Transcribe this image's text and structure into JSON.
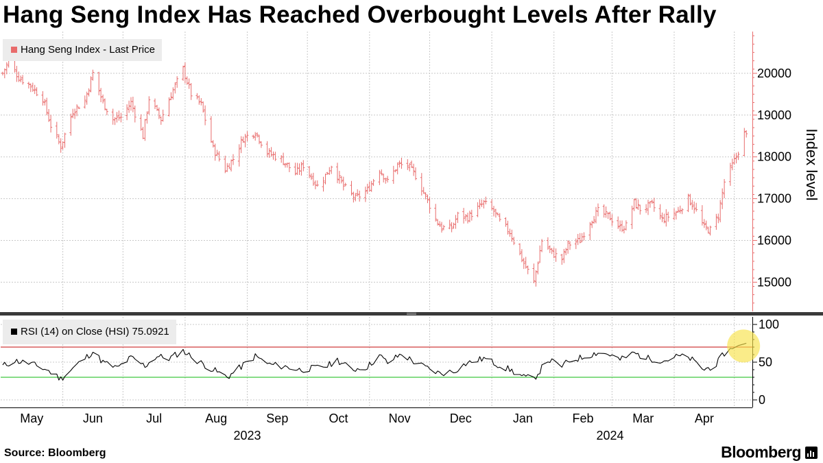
{
  "title": "Hang Seng Index Has Reached Overbought Levels After Rally",
  "source": "Source: Bloomberg",
  "brand": "Bloomberg",
  "colors": {
    "price": "#e86b6b",
    "rsi": "#000000",
    "overbought": "#cf3b3b",
    "oversold": "#3ec63e",
    "highlight": "#f7e24a"
  },
  "chart_data": [
    {
      "type": "ohlc",
      "title": "Hang Seng Index - Last Price",
      "ylabel": "Index level",
      "ylim": [
        14300,
        21000
      ],
      "yticks": [
        15000,
        16000,
        17000,
        18000,
        19000,
        20000
      ],
      "x_labels": [
        "May",
        "Jun",
        "Jul",
        "Aug",
        "Sep",
        "Oct",
        "Nov",
        "Dec",
        "Jan",
        "Feb",
        "Mar",
        "Apr"
      ],
      "year_labels": [
        "2023",
        "2024"
      ],
      "series": [
        {
          "name": "Hang Seng Index - Last Price",
          "anchors": [
            [
              "2023-05-02",
              20000
            ],
            [
              "2023-05-05",
              20300
            ],
            [
              "2023-05-10",
              19900
            ],
            [
              "2023-05-16",
              19700
            ],
            [
              "2023-05-22",
              19400
            ],
            [
              "2023-05-26",
              18750
            ],
            [
              "2023-05-31",
              18250
            ],
            [
              "2023-06-06",
              19100
            ],
            [
              "2023-06-12",
              19350
            ],
            [
              "2023-06-16",
              20000
            ],
            [
              "2023-06-21",
              19300
            ],
            [
              "2023-06-26",
              18900
            ],
            [
              "2023-06-30",
              18950
            ],
            [
              "2023-07-05",
              19300
            ],
            [
              "2023-07-11",
              18500
            ],
            [
              "2023-07-14",
              19400
            ],
            [
              "2023-07-20",
              18900
            ],
            [
              "2023-07-25",
              19500
            ],
            [
              "2023-07-31",
              20100
            ],
            [
              "2023-08-04",
              19500
            ],
            [
              "2023-08-09",
              19250
            ],
            [
              "2023-08-15",
              18200
            ],
            [
              "2023-08-21",
              17700
            ],
            [
              "2023-08-25",
              17950
            ],
            [
              "2023-08-30",
              18450
            ],
            [
              "2023-09-05",
              18600
            ],
            [
              "2023-09-11",
              18100
            ],
            [
              "2023-09-18",
              17950
            ],
            [
              "2023-09-25",
              17600
            ],
            [
              "2023-09-29",
              17800
            ],
            [
              "2023-10-06",
              17300
            ],
            [
              "2023-10-10",
              17550
            ],
            [
              "2023-10-13",
              17800
            ],
            [
              "2023-10-19",
              17300
            ],
            [
              "2023-10-25",
              17000
            ],
            [
              "2023-10-31",
              17200
            ],
            [
              "2023-11-06",
              17700
            ],
            [
              "2023-11-10",
              17400
            ],
            [
              "2023-11-15",
              17800
            ],
            [
              "2023-11-20",
              17800
            ],
            [
              "2023-11-24",
              17550
            ],
            [
              "2023-11-30",
              16950
            ],
            [
              "2023-12-04",
              16500
            ],
            [
              "2023-12-07",
              16300
            ],
            [
              "2023-12-12",
              16300
            ],
            [
              "2023-12-15",
              16600
            ],
            [
              "2023-12-20",
              16550
            ],
            [
              "2023-12-28",
              16900
            ],
            [
              "2024-01-02",
              16700
            ],
            [
              "2024-01-05",
              16450
            ],
            [
              "2024-01-10",
              16200
            ],
            [
              "2024-01-17",
              15450
            ],
            [
              "2024-01-22",
              15000
            ],
            [
              "2024-01-26",
              16000
            ],
            [
              "2024-01-31",
              15700
            ],
            [
              "2024-02-05",
              15550
            ],
            [
              "2024-02-08",
              15900
            ],
            [
              "2024-02-14",
              16000
            ],
            [
              "2024-02-19",
              16450
            ],
            [
              "2024-02-23",
              16700
            ],
            [
              "2024-02-29",
              16550
            ],
            [
              "2024-03-05",
              16300
            ],
            [
              "2024-03-08",
              16350
            ],
            [
              "2024-03-12",
              16900
            ],
            [
              "2024-03-15",
              16750
            ],
            [
              "2024-03-21",
              16850
            ],
            [
              "2024-03-26",
              16500
            ],
            [
              "2024-04-03",
              16700
            ],
            [
              "2024-04-08",
              17000
            ],
            [
              "2024-04-11",
              16800
            ],
            [
              "2024-04-16",
              16300
            ],
            [
              "2024-04-19",
              16250
            ],
            [
              "2024-04-23",
              16600
            ],
            [
              "2024-04-26",
              17400
            ],
            [
              "2024-05-02",
              18000
            ],
            [
              "2024-05-06",
              18550
            ],
            [
              "2024-05-07",
              18500
            ]
          ]
        }
      ]
    },
    {
      "type": "line",
      "title": "RSI (14)  on Close (HSI) 75.0921",
      "ylim": [
        -10,
        110
      ],
      "yticks": [
        0,
        50,
        100
      ],
      "overbought": 70,
      "oversold": 30,
      "last_value": 75.0921,
      "series": [
        {
          "name": "RSI (14) on Close (HSI)",
          "anchors": [
            [
              "2023-05-02",
              45
            ],
            [
              "2023-05-08",
              52
            ],
            [
              "2023-05-16",
              48
            ],
            [
              "2023-05-24",
              40
            ],
            [
              "2023-05-31",
              28
            ],
            [
              "2023-06-06",
              42
            ],
            [
              "2023-06-12",
              55
            ],
            [
              "2023-06-16",
              64
            ],
            [
              "2023-06-21",
              50
            ],
            [
              "2023-06-28",
              42
            ],
            [
              "2023-07-05",
              56
            ],
            [
              "2023-07-12",
              45
            ],
            [
              "2023-07-18",
              58
            ],
            [
              "2023-07-24",
              55
            ],
            [
              "2023-07-31",
              65
            ],
            [
              "2023-08-07",
              52
            ],
            [
              "2023-08-15",
              40
            ],
            [
              "2023-08-22",
              30
            ],
            [
              "2023-08-28",
              42
            ],
            [
              "2023-09-05",
              58
            ],
            [
              "2023-09-12",
              47
            ],
            [
              "2023-09-20",
              44
            ],
            [
              "2023-09-27",
              40
            ],
            [
              "2023-10-04",
              42
            ],
            [
              "2023-10-11",
              45
            ],
            [
              "2023-10-16",
              53
            ],
            [
              "2023-10-23",
              40
            ],
            [
              "2023-10-31",
              44
            ],
            [
              "2023-11-06",
              59
            ],
            [
              "2023-11-10",
              49
            ],
            [
              "2023-11-17",
              61
            ],
            [
              "2023-11-24",
              49
            ],
            [
              "2023-11-30",
              42
            ],
            [
              "2023-12-06",
              35
            ],
            [
              "2023-12-13",
              38
            ],
            [
              "2023-12-19",
              48
            ],
            [
              "2023-12-28",
              55
            ],
            [
              "2024-01-03",
              48
            ],
            [
              "2024-01-10",
              40
            ],
            [
              "2024-01-17",
              30
            ],
            [
              "2024-01-22",
              28
            ],
            [
              "2024-01-29",
              53
            ],
            [
              "2024-02-05",
              45
            ],
            [
              "2024-02-09",
              52
            ],
            [
              "2024-02-16",
              57
            ],
            [
              "2024-02-23",
              63
            ],
            [
              "2024-02-29",
              60
            ],
            [
              "2024-03-05",
              53
            ],
            [
              "2024-03-12",
              62
            ],
            [
              "2024-03-19",
              55
            ],
            [
              "2024-03-27",
              52
            ],
            [
              "2024-04-03",
              58
            ],
            [
              "2024-04-09",
              55
            ],
            [
              "2024-04-16",
              40
            ],
            [
              "2024-04-22",
              47
            ],
            [
              "2024-04-26",
              62
            ],
            [
              "2024-05-03",
              72
            ],
            [
              "2024-05-07",
              75.09
            ]
          ]
        }
      ]
    }
  ]
}
